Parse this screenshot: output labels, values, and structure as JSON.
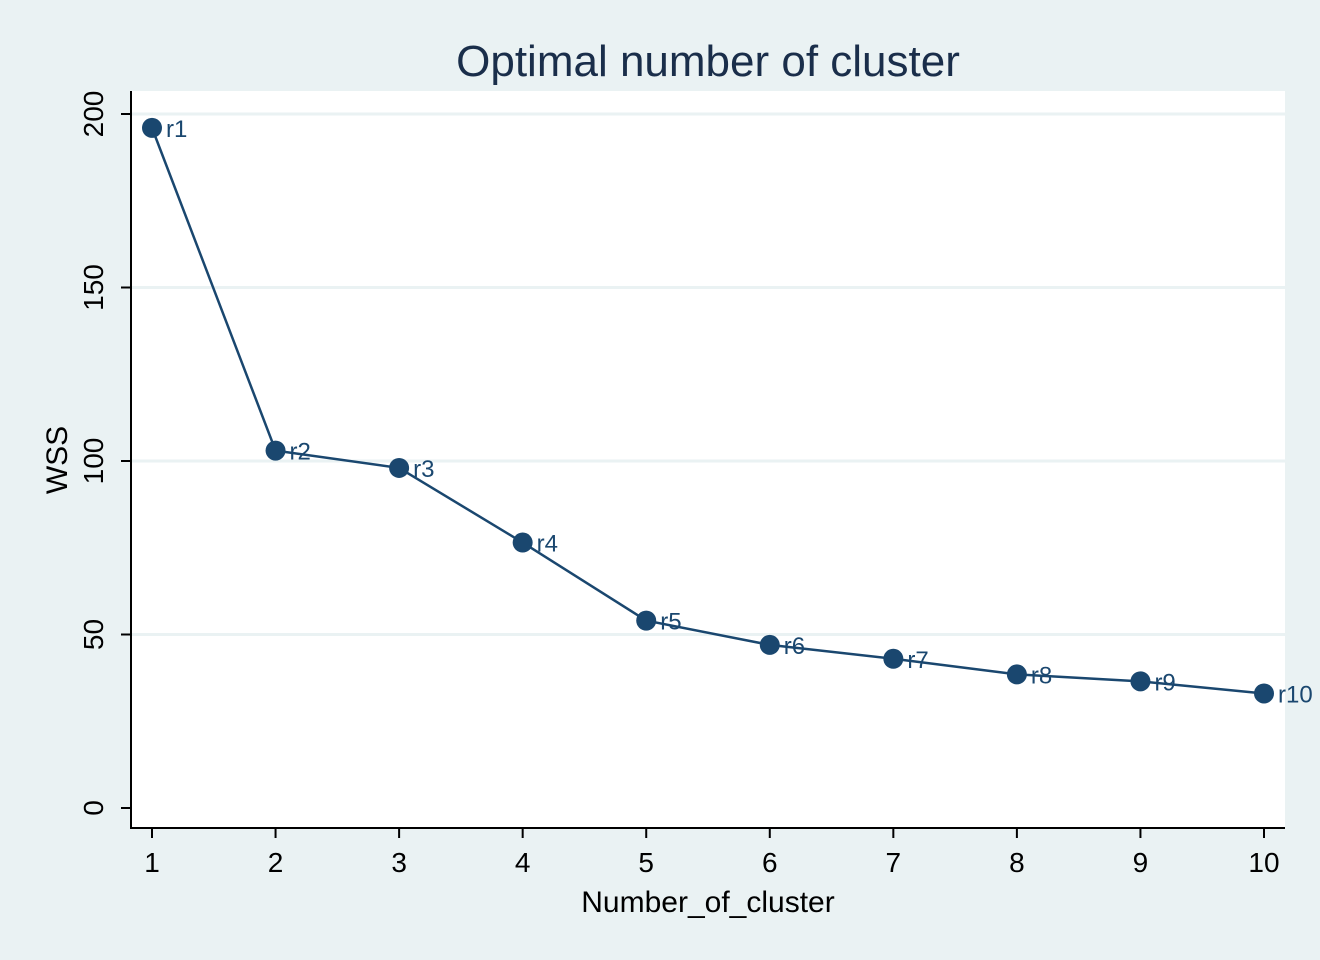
{
  "chart_data": {
    "type": "line",
    "title": "Optimal number of cluster",
    "xlabel": "Number_of_cluster",
    "ylabel": "WSS",
    "x": [
      1,
      2,
      3,
      4,
      5,
      6,
      7,
      8,
      9,
      10
    ],
    "series": [
      {
        "values": [
          196,
          103,
          98,
          76.5,
          54,
          47,
          43,
          38.5,
          36.5,
          33
        ],
        "labels": [
          "r1",
          "r2",
          "r3",
          "r4",
          "r5",
          "r6",
          "r7",
          "r8",
          "r9",
          "r10"
        ]
      }
    ],
    "xticks": [
      1,
      2,
      3,
      4,
      5,
      6,
      7,
      8,
      9,
      10
    ],
    "yticks": [
      0,
      50,
      100,
      150,
      200
    ],
    "xlim": [
      1,
      10
    ],
    "ylim": [
      0,
      200
    ],
    "grid": true,
    "colors": {
      "background": "#eaf2f3",
      "plot_area": "#ffffff",
      "series": "#1a476f",
      "title": "#1a2e4a"
    }
  }
}
